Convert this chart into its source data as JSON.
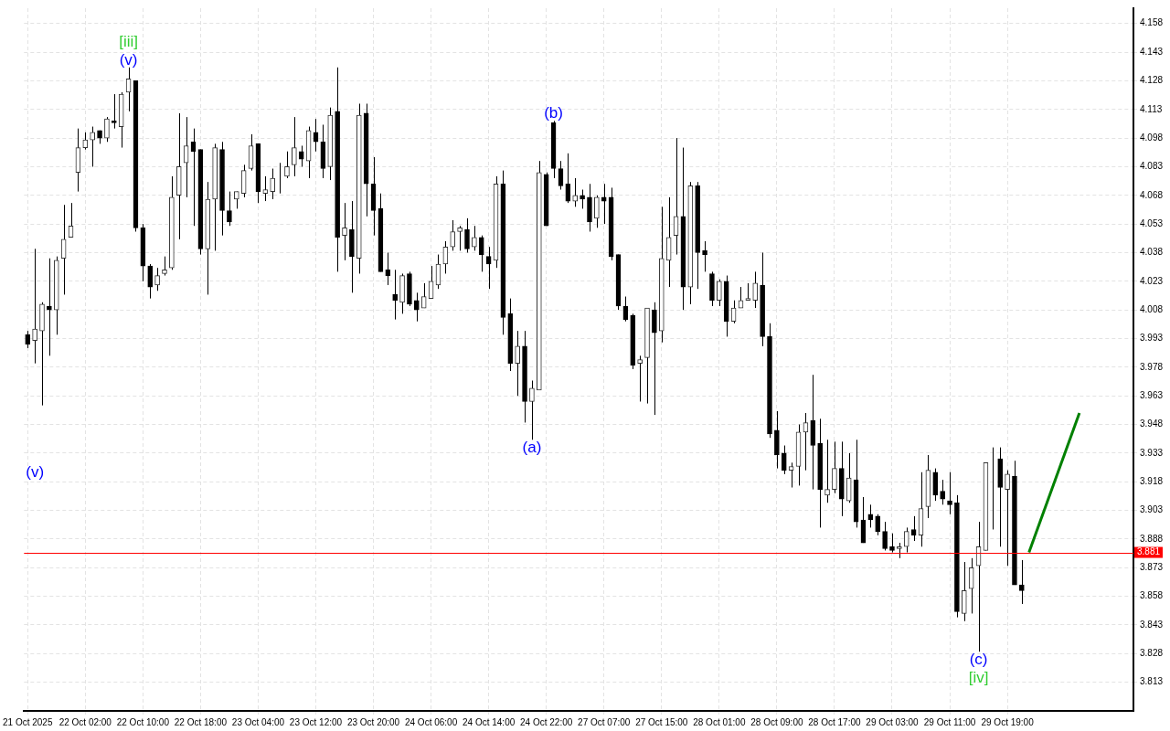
{
  "chart_data": {
    "type": "candlestick",
    "categories": [
      "21 Oct 2025",
      null,
      null,
      null,
      null,
      null,
      null,
      null,
      "22 Oct 02:00",
      null,
      null,
      null,
      null,
      null,
      null,
      null,
      "22 Oct 10:00",
      null,
      null,
      null,
      null,
      null,
      null,
      null,
      "22 Oct 18:00",
      null,
      null,
      null,
      null,
      null,
      null,
      null,
      "23 Oct 04:00",
      null,
      null,
      null,
      null,
      null,
      null,
      null,
      "23 Oct 12:00",
      null,
      null,
      null,
      null,
      null,
      null,
      null,
      "23 Oct 20:00",
      null,
      null,
      null,
      null,
      null,
      null,
      null,
      "24 Oct 06:00",
      null,
      null,
      null,
      null,
      null,
      null,
      null,
      "24 Oct 14:00",
      null,
      null,
      null,
      null,
      null,
      null,
      null,
      "24 Oct 22:00",
      null,
      null,
      null,
      null,
      null,
      null,
      null,
      "27 Oct 07:00",
      null,
      null,
      null,
      null,
      null,
      null,
      null,
      "27 Oct 15:00",
      null,
      null,
      null,
      null,
      null,
      null,
      null,
      "28 Oct 01:00",
      null,
      null,
      null,
      null,
      null,
      null,
      null,
      "28 Oct 09:00",
      null,
      null,
      null,
      null,
      null,
      null,
      null,
      "28 Oct 17:00",
      null,
      null,
      null,
      null,
      null,
      null,
      null,
      "29 Oct 03:00",
      null,
      null,
      null,
      null,
      null,
      null,
      null,
      "29 Oct 11:00",
      null,
      null,
      null,
      null,
      null,
      null,
      null,
      "29 Oct 19:00",
      null,
      null,
      null,
      null,
      null,
      null,
      null,
      null,
      null,
      null,
      null,
      null,
      null,
      null,
      null,
      null,
      null
    ],
    "ohlc": [
      [
        3.995,
        3.997,
        3.988,
        3.99
      ],
      [
        3.992,
        4.04,
        3.98,
        3.998
      ],
      [
        3.997,
        4.012,
        3.958,
        4.011
      ],
      [
        4.01,
        4.035,
        3.984,
        4.008
      ],
      [
        4.008,
        4.036,
        3.995,
        4.034
      ],
      [
        4.035,
        4.063,
        4.016,
        4.045
      ],
      [
        4.046,
        4.064,
        4.046,
        4.052
      ],
      [
        4.08,
        4.103,
        4.07,
        4.093
      ],
      [
        4.093,
        4.101,
        4.092,
        4.097
      ],
      [
        4.097,
        4.104,
        4.083,
        4.101
      ],
      [
        4.102,
        4.102,
        4.095,
        4.098
      ],
      [
        4.098,
        4.109,
        4.096,
        4.108
      ],
      [
        4.107,
        4.121,
        4.103,
        4.106
      ],
      [
        4.104,
        4.122,
        4.093,
        4.121
      ],
      [
        4.122,
        4.135,
        4.112,
        4.129
      ],
      [
        4.128,
        4.128,
        4.049,
        4.051
      ],
      [
        4.051,
        4.053,
        4.023,
        4.031
      ],
      [
        4.031,
        4.032,
        4.014,
        4.02
      ],
      [
        4.021,
        4.03,
        4.018,
        4.026
      ],
      [
        4.027,
        4.036,
        4.026,
        4.029
      ],
      [
        4.03,
        4.078,
        4.029,
        4.067
      ],
      [
        4.068,
        4.111,
        4.045,
        4.083
      ],
      [
        4.085,
        4.109,
        4.067,
        4.094
      ],
      [
        4.096,
        4.103,
        4.052,
        4.091
      ],
      [
        4.092,
        4.092,
        4.037,
        4.04
      ],
      [
        4.04,
        4.075,
        4.016,
        4.066
      ],
      [
        4.066,
        4.095,
        4.039,
        4.093
      ],
      [
        4.092,
        4.096,
        4.047,
        4.06
      ],
      [
        4.06,
        4.07,
        4.052,
        4.054
      ],
      [
        4.066,
        4.07,
        4.061,
        4.07
      ],
      [
        4.069,
        4.084,
        4.067,
        4.081
      ],
      [
        4.082,
        4.1,
        4.081,
        4.094
      ],
      [
        4.095,
        4.095,
        4.064,
        4.07
      ],
      [
        4.069,
        4.078,
        4.065,
        4.071
      ],
      [
        4.07,
        4.082,
        4.066,
        4.077
      ],
      [
        4.077,
        4.085,
        4.069,
        4.077
      ],
      [
        4.078,
        4.091,
        4.077,
        4.083
      ],
      [
        4.084,
        4.109,
        4.078,
        4.093
      ],
      [
        4.091,
        4.094,
        4.083,
        4.087
      ],
      [
        4.086,
        4.104,
        4.077,
        4.102
      ],
      [
        4.101,
        4.108,
        4.091,
        4.096
      ],
      [
        4.096,
        4.105,
        4.077,
        4.082
      ],
      [
        4.083,
        4.114,
        4.076,
        4.11
      ],
      [
        4.112,
        4.135,
        4.028,
        4.046
      ],
      [
        4.047,
        4.064,
        4.034,
        4.051
      ],
      [
        4.05,
        4.065,
        4.017,
        4.036
      ],
      [
        4.035,
        4.116,
        4.027,
        4.11
      ],
      [
        4.111,
        4.116,
        4.057,
        4.074
      ],
      [
        4.074,
        4.088,
        4.047,
        4.06
      ],
      [
        4.061,
        4.069,
        4.028,
        4.028
      ],
      [
        4.029,
        4.038,
        4.021,
        4.026
      ],
      [
        4.016,
        4.029,
        4.003,
        4.013
      ],
      [
        4.012,
        4.027,
        4.006,
        4.026
      ],
      [
        4.027,
        4.028,
        4.01,
        4.011
      ],
      [
        4.013,
        4.017,
        4.002,
        4.008
      ],
      [
        4.009,
        4.022,
        4.009,
        4.015
      ],
      [
        4.014,
        4.031,
        4.014,
        4.023
      ],
      [
        4.021,
        4.037,
        4.019,
        4.032
      ],
      [
        4.032,
        4.044,
        4.027,
        4.041
      ],
      [
        4.041,
        4.055,
        4.039,
        4.049
      ],
      [
        4.049,
        4.052,
        4.039,
        4.051
      ],
      [
        4.05,
        4.056,
        4.038,
        4.04
      ],
      [
        4.041,
        4.052,
        4.039,
        4.046
      ],
      [
        4.046,
        4.047,
        4.028,
        4.037
      ],
      [
        4.036,
        4.041,
        4.019,
        4.032
      ],
      [
        4.034,
        4.078,
        4.03,
        4.074
      ],
      [
        4.074,
        4.081,
        3.995,
        4.004
      ],
      [
        4.006,
        4.014,
        3.976,
        3.98
      ],
      [
        3.98,
        3.997,
        3.963,
        3.989
      ],
      [
        3.989,
        3.997,
        3.949,
        3.96
      ],
      [
        3.96,
        3.971,
        3.94,
        3.967
      ],
      [
        3.966,
        4.086,
        3.966,
        4.08
      ],
      [
        4.079,
        4.08,
        4.052,
        4.052
      ],
      [
        4.106,
        4.107,
        4.077,
        4.082
      ],
      [
        4.082,
        4.086,
        4.071,
        4.073
      ],
      [
        4.074,
        4.09,
        4.064,
        4.065
      ],
      [
        4.065,
        4.077,
        4.062,
        4.068
      ],
      [
        4.068,
        4.071,
        4.061,
        4.066
      ],
      [
        4.067,
        4.074,
        4.049,
        4.054
      ],
      [
        4.056,
        4.068,
        4.051,
        4.067
      ],
      [
        4.067,
        4.074,
        4.053,
        4.065
      ],
      [
        4.067,
        4.072,
        4.034,
        4.036
      ],
      [
        4.037,
        4.037,
        4.008,
        4.01
      ],
      [
        4.01,
        4.015,
        4.002,
        4.003
      ],
      [
        4.005,
        4.006,
        3.977,
        3.979
      ],
      [
        3.98,
        3.984,
        3.96,
        3.982
      ],
      [
        3.983,
        4.009,
        3.959,
        4.009
      ],
      [
        4.008,
        4.012,
        3.953,
        3.996
      ],
      [
        3.997,
        4.062,
        3.991,
        4.035
      ],
      [
        4.034,
        4.067,
        4.02,
        4.046
      ],
      [
        4.047,
        4.098,
        4.037,
        4.057
      ],
      [
        4.057,
        4.093,
        4.008,
        4.02
      ],
      [
        4.02,
        4.075,
        4.011,
        4.073
      ],
      [
        4.073,
        4.075,
        4.019,
        4.038
      ],
      [
        4.039,
        4.044,
        4.028,
        4.037
      ],
      [
        4.027,
        4.028,
        4.01,
        4.013
      ],
      [
        4.013,
        4.024,
        4.01,
        4.023
      ],
      [
        4.023,
        4.026,
        3.994,
        4.002
      ],
      [
        4.002,
        4.013,
        4.001,
        4.009
      ],
      [
        4.009,
        4.02,
        4.009,
        4.013
      ],
      [
        4.013,
        4.022,
        4.013,
        4.014
      ],
      [
        4.013,
        4.028,
        4.009,
        4.022
      ],
      [
        4.021,
        4.038,
        3.989,
        3.994
      ],
      [
        3.994,
        4.001,
        3.941,
        3.943
      ],
      [
        3.945,
        3.955,
        3.925,
        3.932
      ],
      [
        3.933,
        3.937,
        3.922,
        3.924
      ],
      [
        3.924,
        3.928,
        3.915,
        3.926
      ],
      [
        3.926,
        3.948,
        3.916,
        3.944
      ],
      [
        3.944,
        3.954,
        3.924,
        3.949
      ],
      [
        3.95,
        3.974,
        3.914,
        3.937
      ],
      [
        3.938,
        3.951,
        3.894,
        3.914
      ],
      [
        3.911,
        3.94,
        3.907,
        3.914
      ],
      [
        3.914,
        3.939,
        3.912,
        3.925
      ],
      [
        3.925,
        3.939,
        3.9,
        3.909
      ],
      [
        3.908,
        3.933,
        3.907,
        3.92
      ],
      [
        3.919,
        3.94,
        3.894,
        3.897
      ],
      [
        3.898,
        3.91,
        3.886,
        3.886
      ],
      [
        3.901,
        3.906,
        3.894,
        3.898
      ],
      [
        3.9,
        3.901,
        3.89,
        3.892
      ],
      [
        3.892,
        3.897,
        3.882,
        3.883
      ],
      [
        3.884,
        3.891,
        3.881,
        3.882
      ],
      [
        3.883,
        3.886,
        3.878,
        3.884
      ],
      [
        3.884,
        3.894,
        3.881,
        3.892
      ],
      [
        3.893,
        3.9,
        3.887,
        3.89
      ],
      [
        3.89,
        3.923,
        3.884,
        3.904
      ],
      [
        3.905,
        3.932,
        3.899,
        3.924
      ],
      [
        3.923,
        3.925,
        3.908,
        3.911
      ],
      [
        3.913,
        3.919,
        3.906,
        3.909
      ],
      [
        3.908,
        3.923,
        3.901,
        3.906
      ],
      [
        3.907,
        3.911,
        3.847,
        3.85
      ],
      [
        3.849,
        3.876,
        3.845,
        3.861
      ],
      [
        3.862,
        3.878,
        3.849,
        3.873
      ],
      [
        3.874,
        3.897,
        3.829,
        3.884
      ],
      [
        3.882,
        3.928,
        3.882,
        3.928
      ],
      [
        3.929,
        3.936,
        3.893,
        3.929
      ],
      [
        3.93,
        3.936,
        3.884,
        3.915
      ],
      [
        3.914,
        3.924,
        3.874,
        3.922
      ],
      [
        3.921,
        3.929,
        3.864,
        3.864
      ],
      [
        3.864,
        3.877,
        3.854,
        3.861
      ],
      null,
      null,
      null,
      null,
      null,
      null,
      null,
      null,
      null,
      null,
      null,
      null,
      null,
      null,
      null
    ],
    "series": [
      {
        "type": "line",
        "color": "#008000",
        "values": [
          null,
          null,
          null,
          null,
          null,
          null,
          null,
          null,
          null,
          null,
          null,
          null,
          null,
          null,
          null,
          null,
          null,
          null,
          null,
          null,
          null,
          null,
          null,
          null,
          null,
          null,
          null,
          null,
          null,
          null,
          null,
          null,
          null,
          null,
          null,
          null,
          null,
          null,
          null,
          null,
          null,
          null,
          null,
          null,
          null,
          null,
          null,
          null,
          null,
          null,
          null,
          null,
          null,
          null,
          null,
          null,
          null,
          null,
          null,
          null,
          null,
          null,
          null,
          null,
          null,
          null,
          null,
          null,
          null,
          null,
          null,
          null,
          null,
          null,
          null,
          null,
          null,
          null,
          null,
          null,
          null,
          null,
          null,
          null,
          null,
          null,
          null,
          null,
          null,
          null,
          null,
          null,
          null,
          null,
          null,
          null,
          null,
          null,
          null,
          null,
          null,
          null,
          null,
          null,
          null,
          null,
          null,
          null,
          null,
          null,
          null,
          null,
          null,
          null,
          null,
          null,
          null,
          null,
          null,
          null,
          null,
          null,
          null,
          null,
          null,
          null,
          null,
          null,
          null,
          null,
          null,
          null,
          null,
          null,
          null,
          null,
          null,
          null,
          null,
          3.881,
          null,
          null,
          null,
          null,
          null,
          null,
          3.954,
          null,
          null,
          null,
          null,
          null,
          null,
          null
        ]
      }
    ],
    "ylim": [
      3.798,
      4.166
    ],
    "yticks": [
      3.813,
      3.828,
      3.843,
      3.858,
      3.873,
      3.888,
      3.903,
      3.918,
      3.933,
      3.948,
      3.963,
      3.978,
      3.993,
      4.008,
      4.023,
      4.038,
      4.053,
      4.068,
      4.083,
      4.098,
      4.113,
      4.128,
      4.143,
      4.158
    ],
    "grid": true,
    "legend": false,
    "ref_lines": [
      {
        "axis": "y",
        "value": 3.881,
        "label": "3.881",
        "color": "#ff0000"
      }
    ],
    "annotations": [
      "(v)",
      "[iii]",
      "(v)",
      "(a)",
      "(b)",
      "(c)",
      "[iv]"
    ]
  }
}
